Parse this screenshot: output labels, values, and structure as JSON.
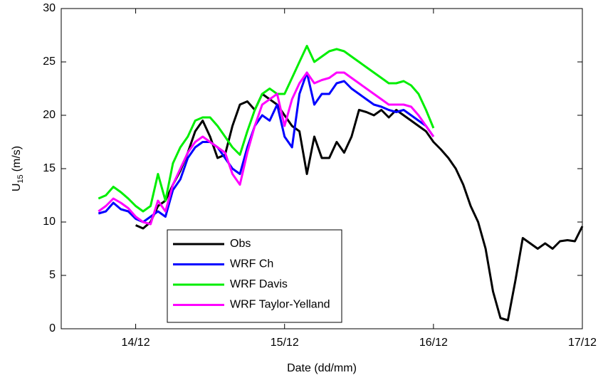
{
  "chart_data": {
    "type": "line",
    "xlabel": "Date (dd/mm)",
    "ylabel": [
      "U",
      "15",
      "(m/s)"
    ],
    "x": [
      13.75,
      13.8,
      13.85,
      13.9,
      13.95,
      14,
      14.05,
      14.1,
      14.15,
      14.2,
      14.25,
      14.3,
      14.35,
      14.4,
      14.45,
      14.5,
      14.55,
      14.6,
      14.65,
      14.7,
      14.75,
      14.8,
      14.85,
      14.9,
      14.95,
      15,
      15.05,
      15.1,
      15.15,
      15.2,
      15.25,
      15.3,
      15.35,
      15.4,
      15.45,
      15.5,
      15.55,
      15.6,
      15.65,
      15.7,
      15.75,
      15.8,
      15.85,
      15.9,
      15.95,
      16,
      16.05,
      16.1,
      16.15,
      16.2,
      16.25,
      16.3,
      16.35,
      16.4,
      16.45,
      16.5,
      16.55,
      16.6,
      16.65,
      16.7,
      16.75,
      16.8,
      16.85,
      16.9,
      16.95,
      17
    ],
    "series": [
      {
        "name": "Obs",
        "color": "#000000",
        "values": [
          null,
          null,
          null,
          null,
          null,
          9.7,
          9.4,
          10.0,
          11.5,
          12.0,
          13.5,
          14.8,
          16.5,
          18.5,
          19.5,
          18.0,
          16.0,
          16.3,
          19.0,
          21.0,
          21.3,
          20.5,
          22.0,
          21.5,
          21.0,
          20.0,
          19.0,
          18.5,
          14.5,
          18.0,
          16.0,
          16.0,
          17.5,
          16.5,
          18.0,
          20.5,
          20.3,
          20.0,
          20.5,
          19.8,
          20.5,
          20.0,
          19.5,
          19.0,
          18.5,
          17.5,
          16.8,
          16.0,
          15.0,
          13.5,
          11.5,
          10.0,
          7.5,
          3.5,
          1.0,
          0.8,
          4.5,
          8.5,
          8.0,
          7.5,
          8.0,
          7.5,
          8.2,
          8.3,
          8.2,
          9.6
        ]
      },
      {
        "name": "WRF Ch",
        "color": "#0000ff",
        "values": [
          10.8,
          11.0,
          11.8,
          11.2,
          11.0,
          10.3,
          10.0,
          10.5,
          11.0,
          10.5,
          13.0,
          14.0,
          16.0,
          17.0,
          17.5,
          17.5,
          17.0,
          16.0,
          15.0,
          14.5,
          17.0,
          19.0,
          20.0,
          19.5,
          21.0,
          18.0,
          17.0,
          22.0,
          24.0,
          21.0,
          22.0,
          22.0,
          23.0,
          23.2,
          22.5,
          22.0,
          21.5,
          21.0,
          20.8,
          20.5,
          20.3,
          20.5,
          20.0,
          19.5,
          19.0,
          18.0,
          null,
          null,
          null,
          null,
          null,
          null,
          null,
          null,
          null,
          null,
          null,
          null,
          null,
          null,
          null,
          null,
          null,
          null,
          null,
          null
        ]
      },
      {
        "name": "WRF Davis",
        "color": "#00ee00",
        "values": [
          12.2,
          12.5,
          13.3,
          12.8,
          12.2,
          11.5,
          11.0,
          11.5,
          14.5,
          12.0,
          15.5,
          17.0,
          18.0,
          19.5,
          19.8,
          19.8,
          19.0,
          18.0,
          17.0,
          16.3,
          18.5,
          20.5,
          22.0,
          22.5,
          22.0,
          22.0,
          23.5,
          25.0,
          26.5,
          25.0,
          25.5,
          26.0,
          26.2,
          26.0,
          25.5,
          25.0,
          24.5,
          24.0,
          23.5,
          23.0,
          23.0,
          23.2,
          22.8,
          22.0,
          20.5,
          18.8,
          null,
          null,
          null,
          null,
          null,
          null,
          null,
          null,
          null,
          null,
          null,
          null,
          null,
          null,
          null,
          null,
          null,
          null,
          null,
          null
        ]
      },
      {
        "name": "WRF Taylor-Yelland",
        "color": "#ff00ff",
        "values": [
          11.0,
          11.5,
          12.2,
          11.8,
          11.3,
          10.5,
          10.0,
          9.8,
          12.0,
          11.0,
          13.5,
          15.0,
          16.5,
          17.5,
          18.0,
          17.5,
          17.0,
          16.5,
          14.5,
          13.5,
          16.5,
          19.0,
          21.0,
          21.5,
          22.0,
          19.0,
          21.5,
          23.0,
          24.0,
          23.0,
          23.3,
          23.5,
          24.0,
          24.0,
          23.5,
          23.0,
          22.5,
          22.0,
          21.5,
          21.0,
          21.0,
          21.0,
          20.8,
          20.0,
          19.0,
          18.0,
          null,
          null,
          null,
          null,
          null,
          null,
          null,
          null,
          null,
          null,
          null,
          null,
          null,
          null,
          null,
          null,
          null,
          null,
          null,
          null
        ]
      }
    ],
    "xlim": [
      13.5,
      17
    ],
    "xticks": [
      {
        "value": 14,
        "label": "14/12"
      },
      {
        "value": 15,
        "label": "15/12"
      },
      {
        "value": 16,
        "label": "16/12"
      },
      {
        "value": 17,
        "label": "17/12"
      }
    ],
    "ylim": [
      0,
      30
    ],
    "yticks": [
      0,
      5,
      10,
      15,
      20,
      25,
      30
    ],
    "grid": false,
    "legend": "lower left"
  }
}
